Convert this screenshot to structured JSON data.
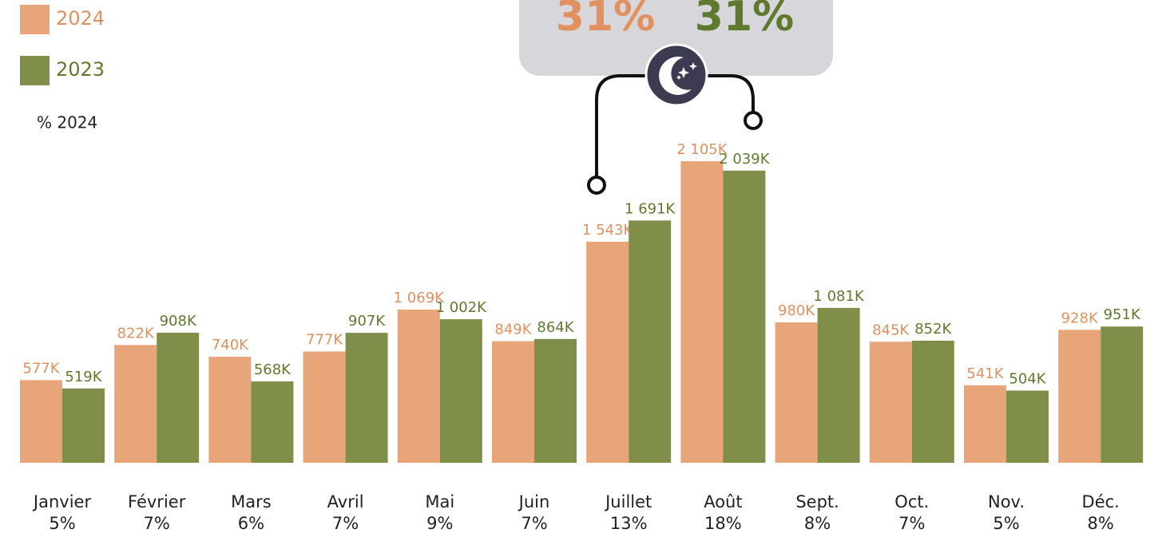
{
  "chart_data": {
    "type": "bar",
    "categories": [
      "Janvier",
      "Février",
      "Mars",
      "Avril",
      "Mai",
      "Juin",
      "Juillet",
      "Août",
      "Sept.",
      "Oct.",
      "Nov.",
      "Déc."
    ],
    "series": [
      {
        "name": "2024",
        "color": "#e8a57a",
        "label_color": "#e0915f",
        "values": [
          577,
          822,
          740,
          777,
          1069,
          849,
          1543,
          2105,
          980,
          845,
          541,
          928
        ],
        "value_labels": [
          "577K",
          "822K",
          "740K",
          "777K",
          "1 069K",
          "849K",
          "1 543K",
          "2 105K",
          "980K",
          "845K",
          "541K",
          "928K"
        ]
      },
      {
        "name": "2023",
        "color": "#7f8f4a",
        "label_color": "#5f7a2e",
        "values": [
          519,
          908,
          568,
          907,
          1002,
          864,
          1691,
          2039,
          1081,
          852,
          504,
          951
        ],
        "value_labels": [
          "519K",
          "908K",
          "568K",
          "907K",
          "1 002K",
          "864K",
          "1 691K",
          "2 039K",
          "1 081K",
          "852K",
          "504K",
          "951K"
        ]
      }
    ],
    "share": {
      "name": "% 2024",
      "values": [
        5,
        7,
        6,
        7,
        9,
        7,
        13,
        18,
        8,
        7,
        5,
        8
      ],
      "value_labels": [
        "5%",
        "7%",
        "6%",
        "7%",
        "9%",
        "7%",
        "13%",
        "18%",
        "8%",
        "7%",
        "5%",
        "8%"
      ]
    },
    "callout": {
      "values": [
        31,
        31
      ],
      "value_labels": [
        "31%",
        "31%"
      ]
    }
  }
}
